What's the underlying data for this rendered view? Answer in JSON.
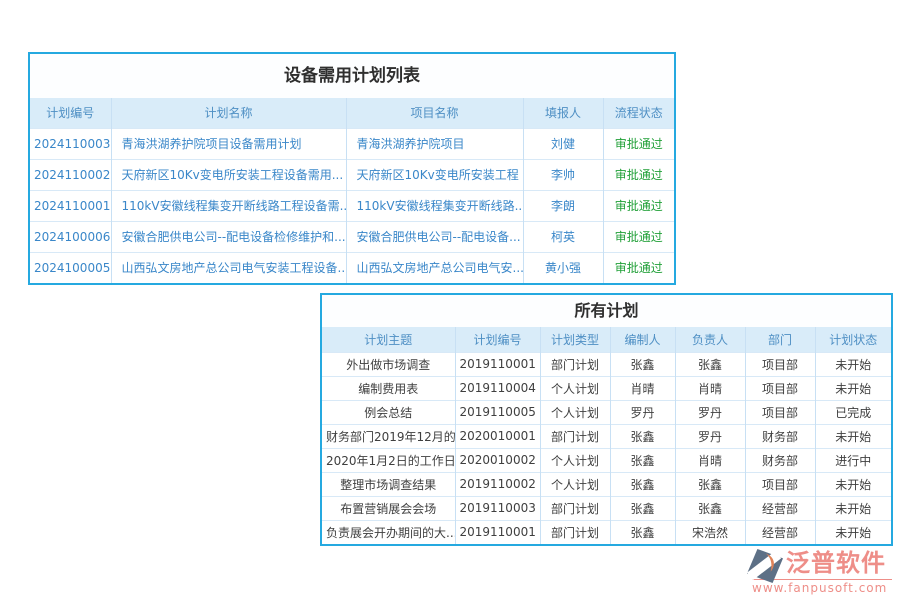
{
  "colors": {
    "border": "#25a9e0",
    "header_bg": "#d9ecf9",
    "header_text": "#4e8fc4",
    "link": "#3a87c9",
    "status_green": "#21a038",
    "text": "#3f3f3f",
    "grid": "#c8e0f4",
    "grid_light": "#d8e9f7",
    "title_text": "#2f2f2f",
    "logo_red": "#ee8e88",
    "logo_slate": "#5d7086",
    "logo_orange": "#e08257"
  },
  "equipment_table": {
    "title": "设备需用计划列表",
    "headers": [
      "计划编号",
      "计划名称",
      "项目名称",
      "填报人",
      "流程状态"
    ],
    "rows": [
      [
        "2024110003",
        "青海洪湖养护院项目设备需用计划",
        "青海洪湖养护院项目",
        "刘健",
        "审批通过"
      ],
      [
        "2024110002",
        "天府新区10Kv变电所安装工程设备需用...",
        "天府新区10Kv变电所安装工程",
        "李帅",
        "审批通过"
      ],
      [
        "2024110001",
        "110kV安徽线程集变开断线路工程设备需...",
        "110kV安徽线程集变开断线路...",
        "李朗",
        "审批通过"
      ],
      [
        "2024100006",
        "安徽合肥供电公司--配电设备检修维护和...",
        "安徽合肥供电公司--配电设备...",
        "柯英",
        "审批通过"
      ],
      [
        "2024100005",
        "山西弘文房地产总公司电气安装工程设备...",
        "山西弘文房地产总公司电气安...",
        "黄小强",
        "审批通过"
      ]
    ]
  },
  "all_plans_table": {
    "title": "所有计划",
    "headers": [
      "计划主题",
      "计划编号",
      "计划类型",
      "编制人",
      "负责人",
      "部门",
      "计划状态"
    ],
    "rows": [
      [
        "外出做市场调查",
        "2019110001",
        "部门计划",
        "张鑫",
        "张鑫",
        "项目部",
        "未开始"
      ],
      [
        "编制费用表",
        "2019110004",
        "个人计划",
        "肖晴",
        "肖晴",
        "项目部",
        "未开始"
      ],
      [
        "例会总结",
        "2019110005",
        "个人计划",
        "罗丹",
        "罗丹",
        "项目部",
        "已完成"
      ],
      [
        "财务部门2019年12月的...",
        "2020010001",
        "部门计划",
        "张鑫",
        "罗丹",
        "财务部",
        "未开始"
      ],
      [
        "2020年1月2日的工作日...",
        "2020010002",
        "个人计划",
        "张鑫",
        "肖晴",
        "财务部",
        "进行中"
      ],
      [
        "整理市场调查结果",
        "2019110002",
        "个人计划",
        "张鑫",
        "张鑫",
        "项目部",
        "未开始"
      ],
      [
        "布置营销展会会场",
        "2019110003",
        "部门计划",
        "张鑫",
        "张鑫",
        "经营部",
        "未开始"
      ],
      [
        "负责展会开办期间的大...",
        "2019110001",
        "部门计划",
        "张鑫",
        "宋浩然",
        "经营部",
        "未开始"
      ]
    ]
  },
  "logo": {
    "name": "泛普软件",
    "url": "www.fanpusoft.com"
  }
}
